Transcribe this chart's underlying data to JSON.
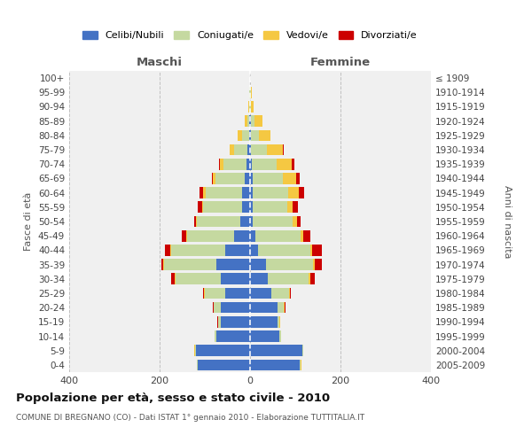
{
  "age_groups": [
    "0-4",
    "5-9",
    "10-14",
    "15-19",
    "20-24",
    "25-29",
    "30-34",
    "35-39",
    "40-44",
    "45-49",
    "50-54",
    "55-59",
    "60-64",
    "65-69",
    "70-74",
    "75-79",
    "80-84",
    "85-89",
    "90-94",
    "95-99",
    "100+"
  ],
  "birth_years": [
    "2005-2009",
    "2000-2004",
    "1995-1999",
    "1990-1994",
    "1985-1989",
    "1980-1984",
    "1975-1979",
    "1970-1974",
    "1965-1969",
    "1960-1964",
    "1955-1959",
    "1950-1954",
    "1945-1949",
    "1940-1944",
    "1935-1939",
    "1930-1934",
    "1925-1929",
    "1920-1924",
    "1915-1919",
    "1910-1914",
    "≤ 1909"
  ],
  "colors": {
    "celibe": "#4472C4",
    "coniugato": "#c5d9a0",
    "vedovo": "#f5c842",
    "divorziato": "#cc0000"
  },
  "maschi": {
    "celibe": [
      115,
      120,
      75,
      65,
      65,
      55,
      65,
      75,
      55,
      35,
      22,
      18,
      18,
      12,
      8,
      5,
      2,
      1,
      0,
      0,
      0
    ],
    "coniugato": [
      2,
      2,
      3,
      5,
      15,
      45,
      100,
      115,
      120,
      105,
      95,
      85,
      80,
      65,
      50,
      30,
      15,
      5,
      2,
      1,
      0
    ],
    "vedovo": [
      1,
      1,
      1,
      1,
      1,
      1,
      2,
      2,
      2,
      2,
      2,
      3,
      5,
      5,
      8,
      10,
      10,
      5,
      2,
      0,
      0
    ],
    "divorziato": [
      0,
      0,
      0,
      1,
      1,
      2,
      8,
      5,
      12,
      8,
      5,
      10,
      8,
      2,
      2,
      0,
      0,
      0,
      0,
      0,
      0
    ]
  },
  "femmine": {
    "nubile": [
      110,
      115,
      65,
      60,
      60,
      48,
      40,
      35,
      18,
      12,
      5,
      5,
      5,
      5,
      3,
      2,
      2,
      1,
      0,
      0,
      0
    ],
    "coniugata": [
      2,
      2,
      3,
      5,
      15,
      38,
      90,
      105,
      115,
      100,
      90,
      78,
      80,
      68,
      55,
      35,
      18,
      8,
      2,
      1,
      0
    ],
    "vedova": [
      1,
      1,
      1,
      1,
      1,
      2,
      3,
      4,
      5,
      6,
      8,
      12,
      22,
      28,
      35,
      35,
      25,
      18,
      5,
      2,
      0
    ],
    "divorziata": [
      0,
      0,
      0,
      1,
      2,
      3,
      10,
      15,
      20,
      15,
      8,
      10,
      12,
      8,
      5,
      2,
      0,
      0,
      0,
      0,
      0
    ]
  },
  "title": "Popolazione per età, sesso e stato civile - 2010",
  "subtitle": "COMUNE DI BREGNANO (CO) - Dati ISTAT 1° gennaio 2010 - Elaborazione TUTTITALIA.IT",
  "xlabel_left": "Maschi",
  "xlabel_right": "Femmine",
  "ylabel_left": "Fasce di età",
  "ylabel_right": "Anni di nascita",
  "xlim": 400,
  "bg_color": "#f0f0f0",
  "grid_color": "#bbbbbb",
  "legend_labels": [
    "Celibi/Nubili",
    "Coniugati/e",
    "Vedovi/e",
    "Divorziati/e"
  ]
}
